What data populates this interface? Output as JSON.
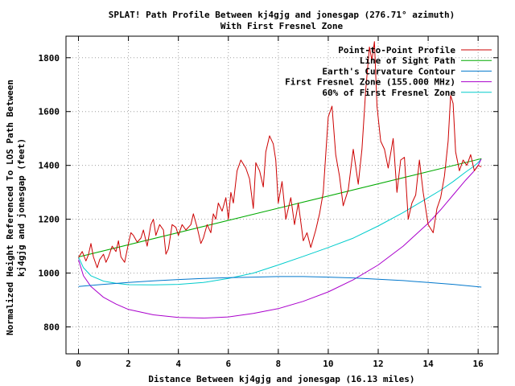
{
  "chart_data": {
    "type": "line",
    "title": "SPLAT! Path Profile Between kj4gjg and jonesgap (276.71° azimuth)",
    "subtitle": "With First Fresnel Zone",
    "xlabel": "Distance Between kj4gjg and jonesgap (16.13 miles)",
    "ylabel_lines": [
      "Normalized Height Referenced To LOS Path Between",
      "kj4gjg and jonesgap (feet)"
    ],
    "xlim": [
      -0.5,
      16.8
    ],
    "ylim": [
      700,
      1880
    ],
    "x_ticks": [
      0,
      2,
      4,
      6,
      8,
      10,
      12,
      14,
      16
    ],
    "y_ticks": [
      800,
      1000,
      1200,
      1400,
      1600,
      1800
    ],
    "grid": true,
    "legend_position": "top-right",
    "series": [
      {
        "name": "Point-to-Point Profile",
        "color": "#cc0000",
        "x": [
          0,
          0.15,
          0.3,
          0.4,
          0.5,
          0.6,
          0.75,
          0.85,
          1.0,
          1.1,
          1.2,
          1.35,
          1.5,
          1.6,
          1.7,
          1.85,
          2.0,
          2.1,
          2.2,
          2.35,
          2.5,
          2.6,
          2.75,
          2.9,
          3.0,
          3.1,
          3.25,
          3.4,
          3.5,
          3.6,
          3.75,
          3.9,
          4.0,
          4.15,
          4.3,
          4.5,
          4.6,
          4.75,
          4.9,
          5.0,
          5.15,
          5.3,
          5.4,
          5.5,
          5.6,
          5.75,
          5.9,
          6.0,
          6.1,
          6.2,
          6.35,
          6.5,
          6.7,
          6.85,
          7.0,
          7.1,
          7.25,
          7.4,
          7.5,
          7.65,
          7.8,
          7.9,
          8.0,
          8.15,
          8.3,
          8.5,
          8.65,
          8.8,
          9.0,
          9.15,
          9.3,
          9.5,
          9.65,
          9.8,
          10.0,
          10.15,
          10.3,
          10.45,
          10.6,
          10.8,
          11.0,
          11.2,
          11.35,
          11.5,
          11.65,
          11.75,
          11.85,
          11.95,
          12.1,
          12.25,
          12.4,
          12.6,
          12.75,
          12.9,
          13.05,
          13.2,
          13.35,
          13.5,
          13.65,
          13.8,
          14.0,
          14.2,
          14.35,
          14.5,
          14.65,
          14.8,
          14.9,
          15.0,
          15.1,
          15.25,
          15.4,
          15.55,
          15.7,
          15.85,
          16.0,
          16.13
        ],
        "y": [
          1058,
          1080,
          1045,
          1068,
          1110,
          1060,
          1020,
          1050,
          1070,
          1040,
          1060,
          1100,
          1080,
          1120,
          1060,
          1040,
          1110,
          1150,
          1140,
          1115,
          1130,
          1160,
          1100,
          1180,
          1200,
          1140,
          1180,
          1160,
          1070,
          1090,
          1180,
          1170,
          1140,
          1180,
          1160,
          1180,
          1220,
          1170,
          1110,
          1130,
          1180,
          1150,
          1220,
          1200,
          1260,
          1230,
          1280,
          1200,
          1300,
          1260,
          1380,
          1420,
          1390,
          1350,
          1240,
          1410,
          1380,
          1320,
          1450,
          1510,
          1480,
          1420,
          1260,
          1340,
          1200,
          1280,
          1180,
          1260,
          1120,
          1150,
          1095,
          1160,
          1220,
          1300,
          1580,
          1620,
          1440,
          1360,
          1250,
          1310,
          1460,
          1330,
          1460,
          1680,
          1840,
          1790,
          1860,
          1620,
          1490,
          1460,
          1390,
          1500,
          1300,
          1420,
          1430,
          1200,
          1260,
          1290,
          1420,
          1300,
          1180,
          1150,
          1240,
          1280,
          1360,
          1490,
          1660,
          1630,
          1450,
          1380,
          1420,
          1400,
          1440,
          1380,
          1400,
          1395
        ]
      },
      {
        "name": "Line of Sight Path",
        "color": "#00aa00",
        "x": [
          0,
          16.13
        ],
        "y": [
          1060,
          1425
        ]
      },
      {
        "name": "Earth's Curvature Contour",
        "color": "#0077cc",
        "x": [
          0,
          1,
          2,
          3,
          4,
          5,
          6,
          7,
          8,
          9,
          10,
          11,
          12,
          13,
          14,
          15,
          16.13
        ],
        "y": [
          950,
          958,
          965,
          971,
          976,
          980,
          983,
          985,
          987,
          987,
          985,
          982,
          977,
          972,
          965,
          958,
          948
        ]
      },
      {
        "name": "First Fresnel Zone (155.000 MHz)",
        "color": "#aa00cc",
        "x": [
          0,
          0.2,
          0.5,
          1,
          1.5,
          2,
          3,
          4,
          5,
          6,
          7,
          8,
          9,
          10,
          11,
          12,
          13,
          14,
          14.5,
          15,
          15.5,
          15.8,
          16,
          16.13
        ],
        "y": [
          1050,
          990,
          950,
          910,
          885,
          865,
          845,
          835,
          833,
          837,
          850,
          868,
          895,
          930,
          975,
          1030,
          1100,
          1185,
          1235,
          1290,
          1345,
          1375,
          1400,
          1425
        ]
      },
      {
        "name": "60% of First Fresnel Zone",
        "color": "#00cccc",
        "x": [
          0,
          0.2,
          0.5,
          1,
          1.5,
          2,
          3,
          4,
          5,
          6,
          7,
          8,
          9,
          10,
          11,
          12,
          13,
          14,
          14.5,
          15,
          15.5,
          15.8,
          16,
          16.13
        ],
        "y": [
          1060,
          1020,
          990,
          970,
          962,
          957,
          956,
          958,
          965,
          980,
          1000,
          1030,
          1062,
          1095,
          1130,
          1175,
          1225,
          1280,
          1308,
          1340,
          1375,
          1395,
          1410,
          1425
        ]
      }
    ]
  }
}
